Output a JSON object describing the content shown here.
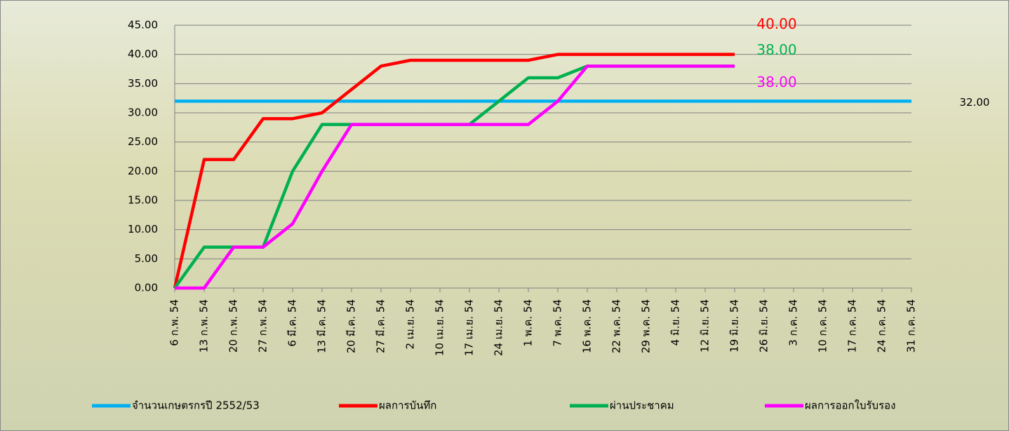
{
  "chart_data": {
    "type": "line",
    "categories": [
      "6 ก.พ. 54",
      "13 ก.พ. 54",
      "20 ก.พ. 54",
      "27 ก.พ. 54",
      "6 มี.ค. 54",
      "13 มี.ค. 54",
      "20 มี.ค. 54",
      "27 มี.ค. 54",
      "2 เม.ย. 54",
      "10 เม.ย. 54",
      "17 เม.ย. 54",
      "24 เม.ย. 54",
      "1 พ.ค. 54",
      "7 พ.ค. 54",
      "16 พ.ค. 54",
      "22 พ.ค. 54",
      "29 พ.ค. 54",
      "4 มิ.ย. 54",
      "12 มิ.ย. 54",
      "19 มิ.ย. 54",
      "26 มิ.ย. 54",
      "3 ก.ค. 54",
      "10 ก.ค. 54",
      "17 ก.ค. 54",
      "24 ก.ค. 54",
      "31 ก.ค. 54"
    ],
    "series": [
      {
        "name": "จำนวนเกษตรกรปี  2552/53",
        "color": "#00b0f0",
        "values": [
          32,
          32,
          32,
          32,
          32,
          32,
          32,
          32,
          32,
          32,
          32,
          32,
          32,
          32,
          32,
          32,
          32,
          32,
          32,
          32,
          32,
          32,
          32,
          32,
          32,
          32
        ],
        "value_labels": [
          null,
          null,
          null,
          null,
          null,
          null,
          null,
          null,
          null,
          null,
          null,
          null,
          null,
          null,
          null,
          null,
          null,
          null,
          null,
          null,
          null,
          null,
          null,
          null,
          null,
          "32.00"
        ]
      },
      {
        "name": "ผลการบันทึก",
        "color": "#ff0000",
        "values": [
          0,
          22,
          22,
          29,
          29,
          30,
          34,
          38,
          39,
          39,
          39,
          39,
          39,
          40,
          40,
          40,
          40,
          40,
          40,
          40,
          null,
          null,
          null,
          null,
          null,
          null
        ],
        "value_labels": [
          null,
          null,
          null,
          null,
          null,
          null,
          null,
          null,
          null,
          null,
          null,
          null,
          null,
          null,
          null,
          null,
          null,
          null,
          null,
          "40.00",
          null,
          null,
          null,
          null,
          null,
          null
        ]
      },
      {
        "name": "ผ่านประชาคม",
        "color": "#00b050",
        "values": [
          0,
          7,
          7,
          7,
          20,
          28,
          28,
          28,
          28,
          28,
          28,
          32,
          36,
          36,
          38,
          38,
          38,
          38,
          38,
          38,
          null,
          null,
          null,
          null,
          null,
          null
        ],
        "value_labels": [
          null,
          null,
          null,
          null,
          null,
          null,
          null,
          null,
          null,
          null,
          null,
          null,
          null,
          null,
          null,
          null,
          null,
          null,
          null,
          "38.00",
          null,
          null,
          null,
          null,
          null,
          null
        ]
      },
      {
        "name": "ผลการออกใบรับรอง",
        "color": "#ff00ff",
        "values": [
          0,
          0,
          7,
          7,
          11,
          20,
          28,
          28,
          28,
          28,
          28,
          28,
          28,
          32,
          38,
          38,
          38,
          38,
          38,
          38,
          null,
          null,
          null,
          null,
          null,
          null
        ],
        "value_labels": [
          null,
          null,
          null,
          null,
          null,
          null,
          null,
          null,
          null,
          null,
          null,
          null,
          null,
          null,
          null,
          null,
          null,
          null,
          null,
          "38.00",
          null,
          null,
          null,
          null,
          null,
          null
        ]
      }
    ],
    "ylim": [
      0,
      45
    ],
    "yticks": [
      {
        "value": 0,
        "label": "0.00"
      },
      {
        "value": 5,
        "label": "5.00"
      },
      {
        "value": 10,
        "label": "10.00"
      },
      {
        "value": 15,
        "label": "15.00"
      },
      {
        "value": 20,
        "label": "20.00"
      },
      {
        "value": 25,
        "label": "25.00"
      },
      {
        "value": 30,
        "label": "30.00"
      },
      {
        "value": 35,
        "label": "35.00"
      },
      {
        "value": 40,
        "label": "40.00"
      },
      {
        "value": 45,
        "label": "45.00"
      }
    ],
    "grid": true,
    "legend": "bottom"
  }
}
